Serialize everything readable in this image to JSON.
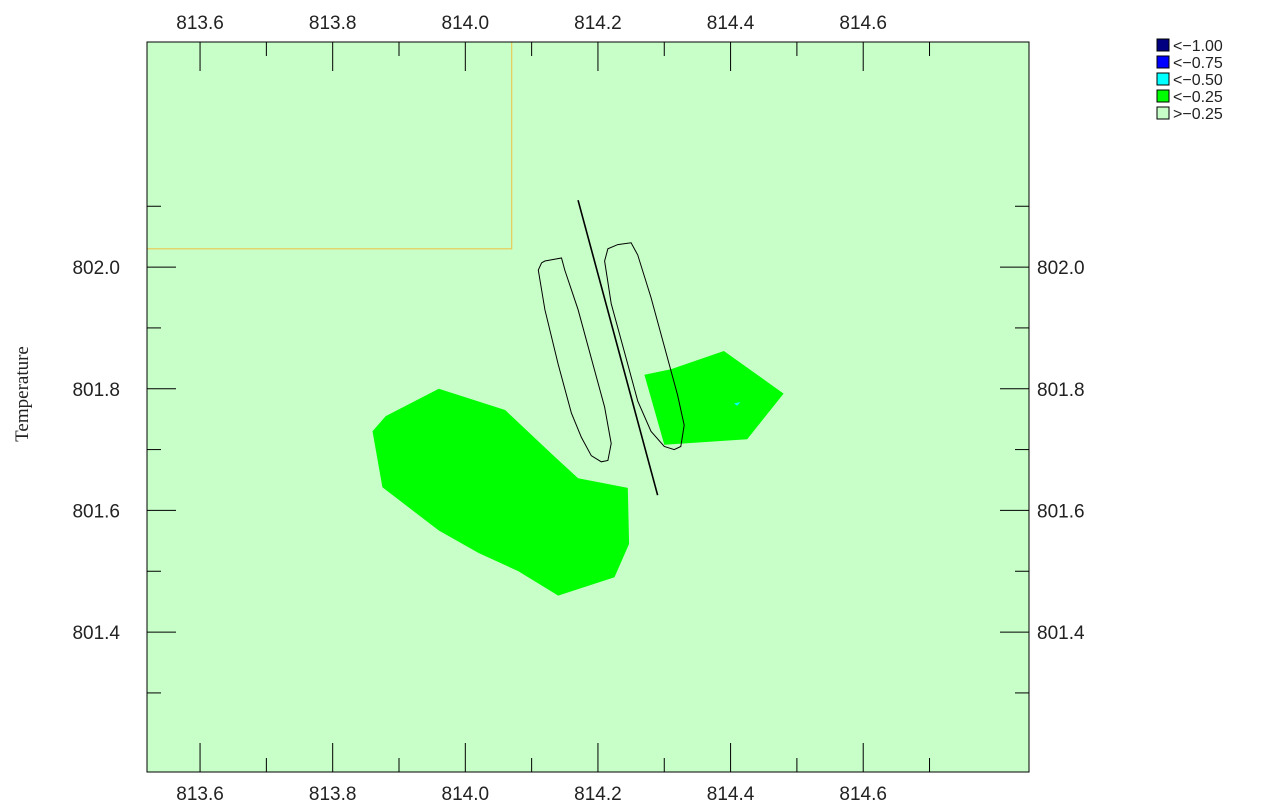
{
  "chart_data": {
    "type": "heatmap",
    "title": "",
    "xlabel": "",
    "ylabel": "Temperature",
    "xlim": [
      813.52,
      814.85
    ],
    "ylim": [
      801.17,
      802.37
    ],
    "x_ticks": [
      "813.6",
      "813.8",
      "814.0",
      "814.2",
      "814.4",
      "814.6"
    ],
    "x_tick_values": [
      813.6,
      813.8,
      814.0,
      814.2,
      814.4,
      814.6
    ],
    "y_ticks": [
      "801.4",
      "801.6",
      "801.8",
      "802.0"
    ],
    "y_tick_values": [
      801.4,
      801.6,
      801.8,
      802.0
    ],
    "legend": {
      "placement": "top-right",
      "entries": [
        {
          "label": "<−1.00",
          "color": "#000080"
        },
        {
          "label": "<−0.75",
          "color": "#0000ff"
        },
        {
          "label": "<−0.50",
          "color": "#00ffff"
        },
        {
          "label": "<−0.25",
          "color": "#00ff00"
        },
        {
          "label": ">−0.25",
          "color": "#c8ffc8"
        }
      ]
    },
    "background_class": ">−0.25",
    "regions": [
      {
        "class": "<−0.25",
        "color": "#00ff00",
        "points": [
          [
            813.86,
            801.73
          ],
          [
            813.88,
            801.755
          ],
          [
            813.96,
            801.8
          ],
          [
            814.06,
            801.765
          ],
          [
            814.13,
            801.693
          ],
          [
            814.17,
            801.653
          ],
          [
            814.245,
            801.637
          ],
          [
            814.247,
            801.545
          ],
          [
            814.225,
            801.49
          ],
          [
            814.14,
            801.46
          ],
          [
            814.08,
            801.5
          ],
          [
            814.02,
            801.53
          ],
          [
            813.96,
            801.567
          ],
          [
            813.875,
            801.638
          ]
        ]
      },
      {
        "class": "<−0.25",
        "color": "#00ff00",
        "points": [
          [
            814.27,
            801.823
          ],
          [
            814.31,
            801.832
          ],
          [
            814.39,
            801.862
          ],
          [
            814.48,
            801.792
          ],
          [
            814.425,
            801.717
          ],
          [
            814.3,
            801.708
          ]
        ]
      },
      {
        "class": "<−0.50",
        "color": "#00ffff",
        "points": [
          [
            814.405,
            801.776
          ],
          [
            814.415,
            801.778
          ],
          [
            814.41,
            801.772
          ]
        ]
      }
    ],
    "outline_rect": {
      "color": "#f0c040",
      "x": [
        813.52,
        814.07
      ],
      "y": [
        802.03,
        802.37
      ]
    },
    "shapes": [
      {
        "color": "#000000",
        "points": [
          [
            814.115,
            802.007
          ],
          [
            814.11,
            801.995
          ],
          [
            814.12,
            801.93
          ],
          [
            814.14,
            801.84
          ],
          [
            814.16,
            801.76
          ],
          [
            814.175,
            801.72
          ],
          [
            814.19,
            801.69
          ],
          [
            814.205,
            801.68
          ],
          [
            814.215,
            801.682
          ],
          [
            814.22,
            801.71
          ],
          [
            814.21,
            801.77
          ],
          [
            814.19,
            801.85
          ],
          [
            814.17,
            801.93
          ],
          [
            814.15,
            801.995
          ],
          [
            814.145,
            802.015
          ],
          [
            814.12,
            802.01
          ]
        ]
      },
      {
        "color": "#000000",
        "points": [
          [
            814.215,
            802.03
          ],
          [
            814.21,
            802.01
          ],
          [
            814.22,
            801.94
          ],
          [
            814.24,
            801.86
          ],
          [
            814.26,
            801.78
          ],
          [
            814.28,
            801.73
          ],
          [
            814.3,
            801.705
          ],
          [
            814.315,
            801.7
          ],
          [
            814.325,
            801.705
          ],
          [
            814.33,
            801.74
          ],
          [
            814.32,
            801.79
          ],
          [
            814.3,
            801.87
          ],
          [
            814.28,
            801.95
          ],
          [
            814.26,
            802.02
          ],
          [
            814.25,
            802.04
          ],
          [
            814.23,
            802.037
          ]
        ]
      }
    ],
    "line": {
      "color": "#000000",
      "from": [
        814.17,
        802.11
      ],
      "to": [
        814.29,
        801.625
      ]
    }
  }
}
